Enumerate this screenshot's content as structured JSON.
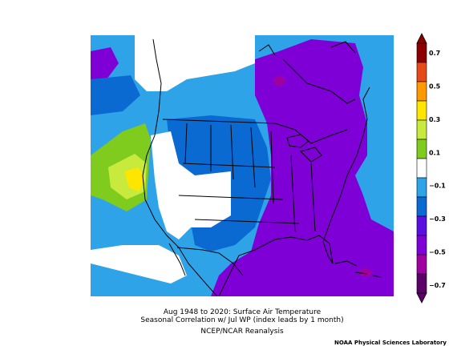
{
  "caption": {
    "line1": "Aug 1948 to 2020: Surface Air Temperature",
    "line2": "Seasonal Correlation w/ Jul WP (index leads by 1 month)",
    "line3": "NCEP/NCAR Reanalysis"
  },
  "credit": "NOAA Physical Sciences Laboratory",
  "colorbar": {
    "labels": [
      "0.7",
      "0.5",
      "0.3",
      "0.1",
      "−0.1",
      "−0.3",
      "−0.5",
      "−0.7"
    ],
    "colors": [
      "#8b0000",
      "#e64a19",
      "#ff9900",
      "#ffe600",
      "#c8ea3c",
      "#80cc1e",
      "#ffffff",
      "#2fa3e8",
      "#0a6ad2",
      "#5a10e0",
      "#7e00d6",
      "#a000a0",
      "#5a0066"
    ]
  },
  "map": {
    "colors": {
      "light_blue": "#2fa3e8",
      "mid_blue": "#0a6ad2",
      "purple": "#7e00d6",
      "magenta": "#a000a0",
      "white": "#ffffff",
      "green": "#80cc1e",
      "yellow_green": "#c8ea3c",
      "yellow": "#ffe600"
    }
  }
}
